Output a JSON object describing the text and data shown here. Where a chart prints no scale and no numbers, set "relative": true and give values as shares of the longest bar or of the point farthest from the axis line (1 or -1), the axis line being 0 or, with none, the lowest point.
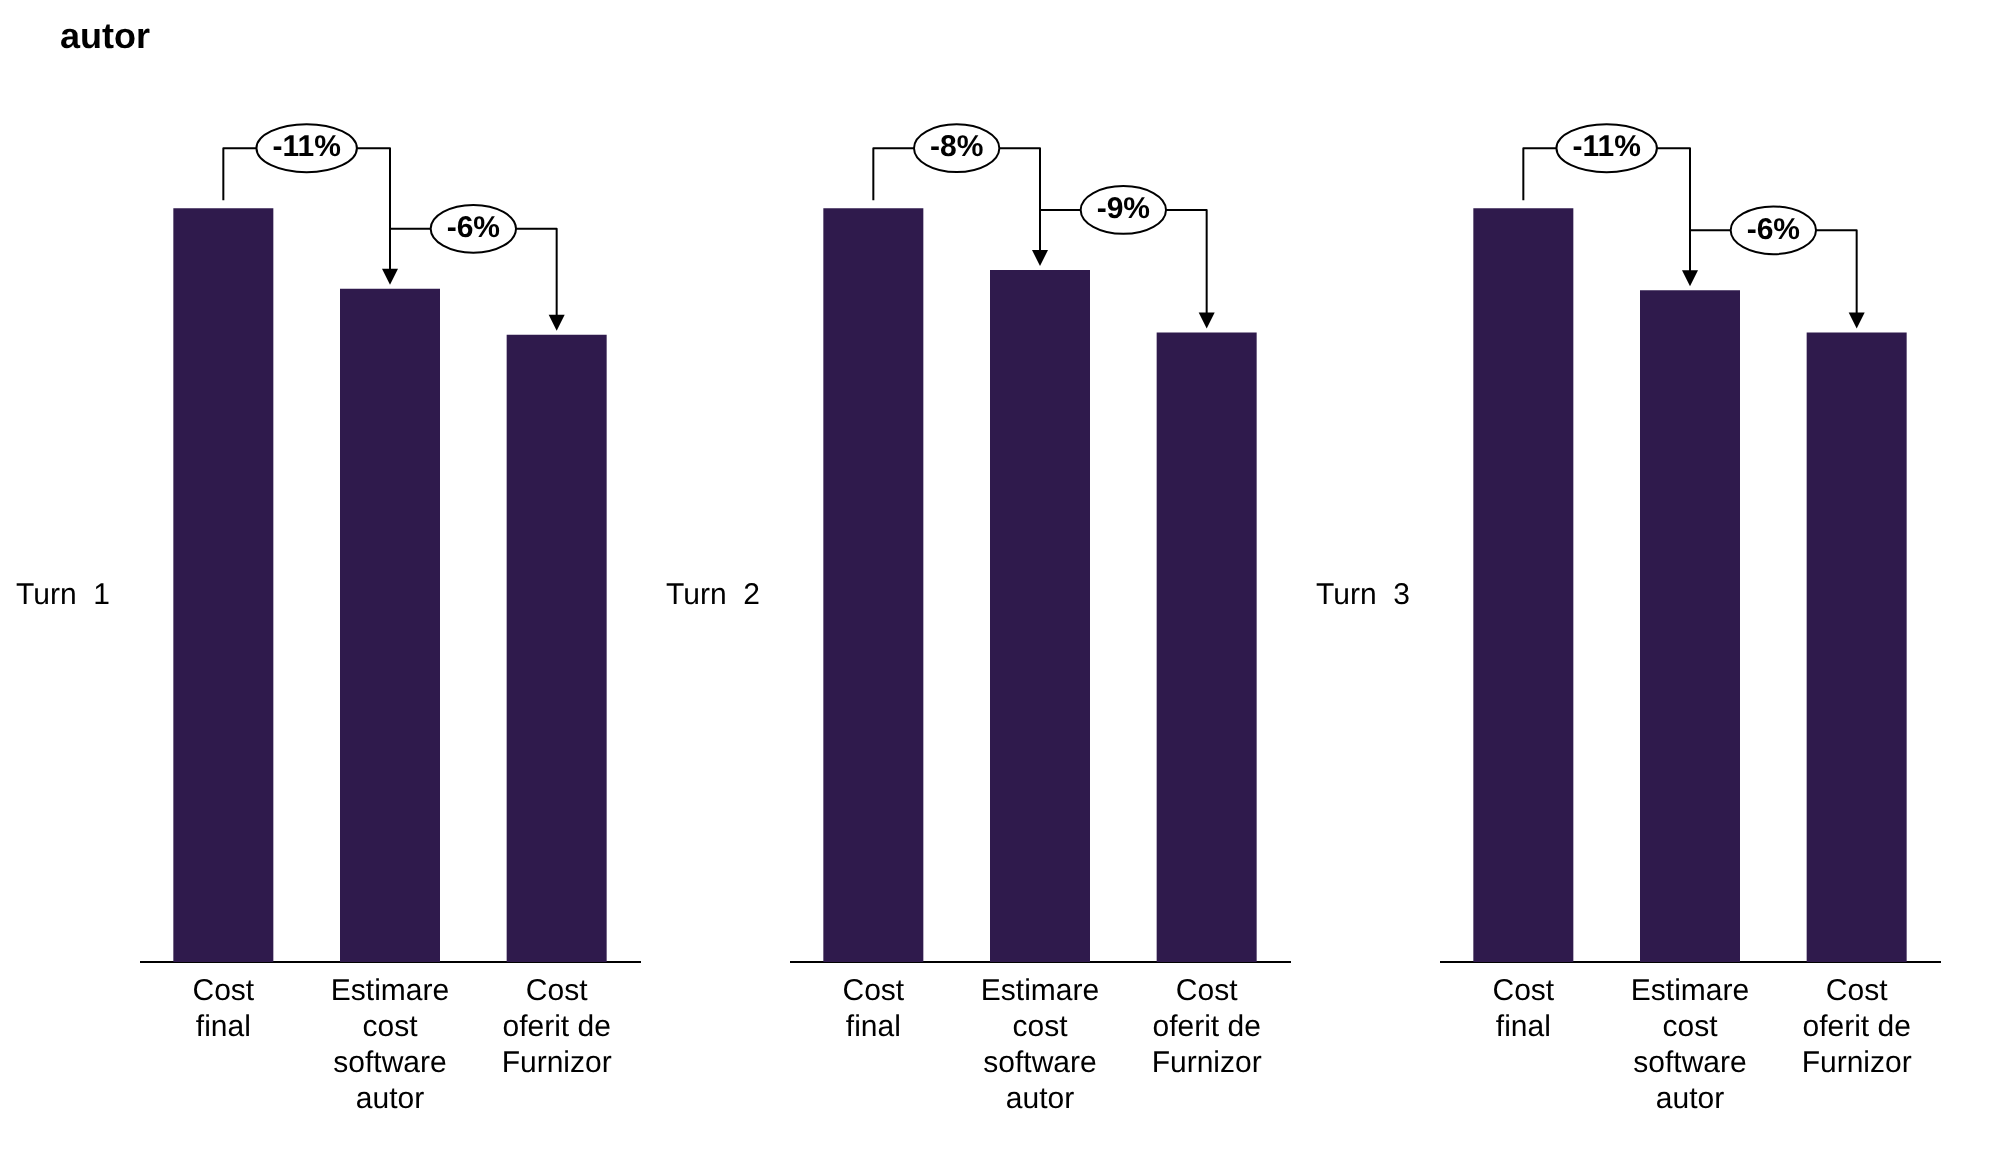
{
  "chart_data": [
    {
      "type": "bar",
      "title": "autor",
      "ylabel": "Turn  1",
      "relative": true,
      "categories": [
        "Cost final",
        "Estimare cost software autor",
        "Cost oferit de Furnizor"
      ],
      "values": [
        1,
        0.893,
        0.832
      ],
      "color": "#2f1a4c",
      "annotations": [
        "-11%",
        "-6%"
      ]
    },
    {
      "type": "bar",
      "ylabel": "Turn  2",
      "relative": true,
      "categories": [
        "Cost final",
        "Estimare cost software autor",
        "Cost oferit de Furnizor"
      ],
      "values": [
        1,
        0.918,
        0.835
      ],
      "color": "#2f1a4c",
      "annotations": [
        "-8%",
        "-9%"
      ]
    },
    {
      "type": "bar",
      "ylabel": "Turn  3",
      "relative": true,
      "categories": [
        "Cost final",
        "Estimare cost software autor",
        "Cost oferit de Furnizor"
      ],
      "values": [
        1,
        0.891,
        0.835
      ],
      "color": "#2f1a4c",
      "annotations": [
        "-11%",
        "-6%"
      ]
    }
  ]
}
